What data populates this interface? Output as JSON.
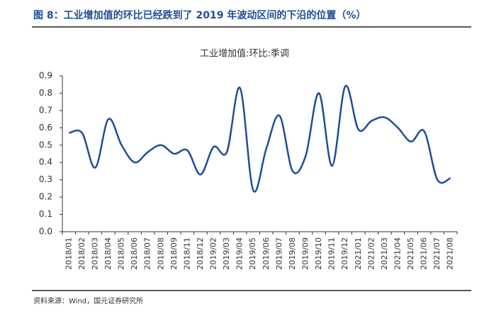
{
  "header": {
    "title": "图 8：工业增加值的环比已经跌到了 2019 年波动区间的下沿的位置（%）"
  },
  "chart_data": {
    "type": "line",
    "title": "工业增加值:环比:季调",
    "categories": [
      "2018/01",
      "2018/02",
      "2018/03",
      "2018/04",
      "2018/05",
      "2018/06",
      "2018/07",
      "2018/08",
      "2018/09",
      "2018/11",
      "2018/12",
      "2019/02",
      "2019/03",
      "2019/04",
      "2019/05",
      "2019/06",
      "2019/07",
      "2019/08",
      "2019/09",
      "2019/10",
      "2019/11",
      "2019/12",
      "2021/01",
      "2021/02",
      "2021/03",
      "2021/04",
      "2021/05",
      "2021/06",
      "2021/07",
      "2021/08"
    ],
    "series": [
      {
        "name": "工业增加值:环比:季调",
        "color": "#1f4e99",
        "values": [
          0.57,
          0.57,
          0.37,
          0.65,
          0.5,
          0.4,
          0.46,
          0.5,
          0.45,
          0.47,
          0.33,
          0.49,
          0.46,
          0.83,
          0.24,
          0.48,
          0.67,
          0.35,
          0.44,
          0.8,
          0.38,
          0.84,
          0.59,
          0.64,
          0.66,
          0.6,
          0.52,
          0.58,
          0.3,
          0.31
        ]
      }
    ],
    "ylim": [
      0,
      0.9
    ],
    "yticks": [
      {
        "value": 0,
        "label": "0.0"
      },
      0.1,
      0.2,
      0.3,
      0.4,
      0.5,
      0.6,
      0.7,
      0.8,
      0.9
    ]
  },
  "footer": {
    "source": "资料来源：Wind，国元证券研究所"
  }
}
